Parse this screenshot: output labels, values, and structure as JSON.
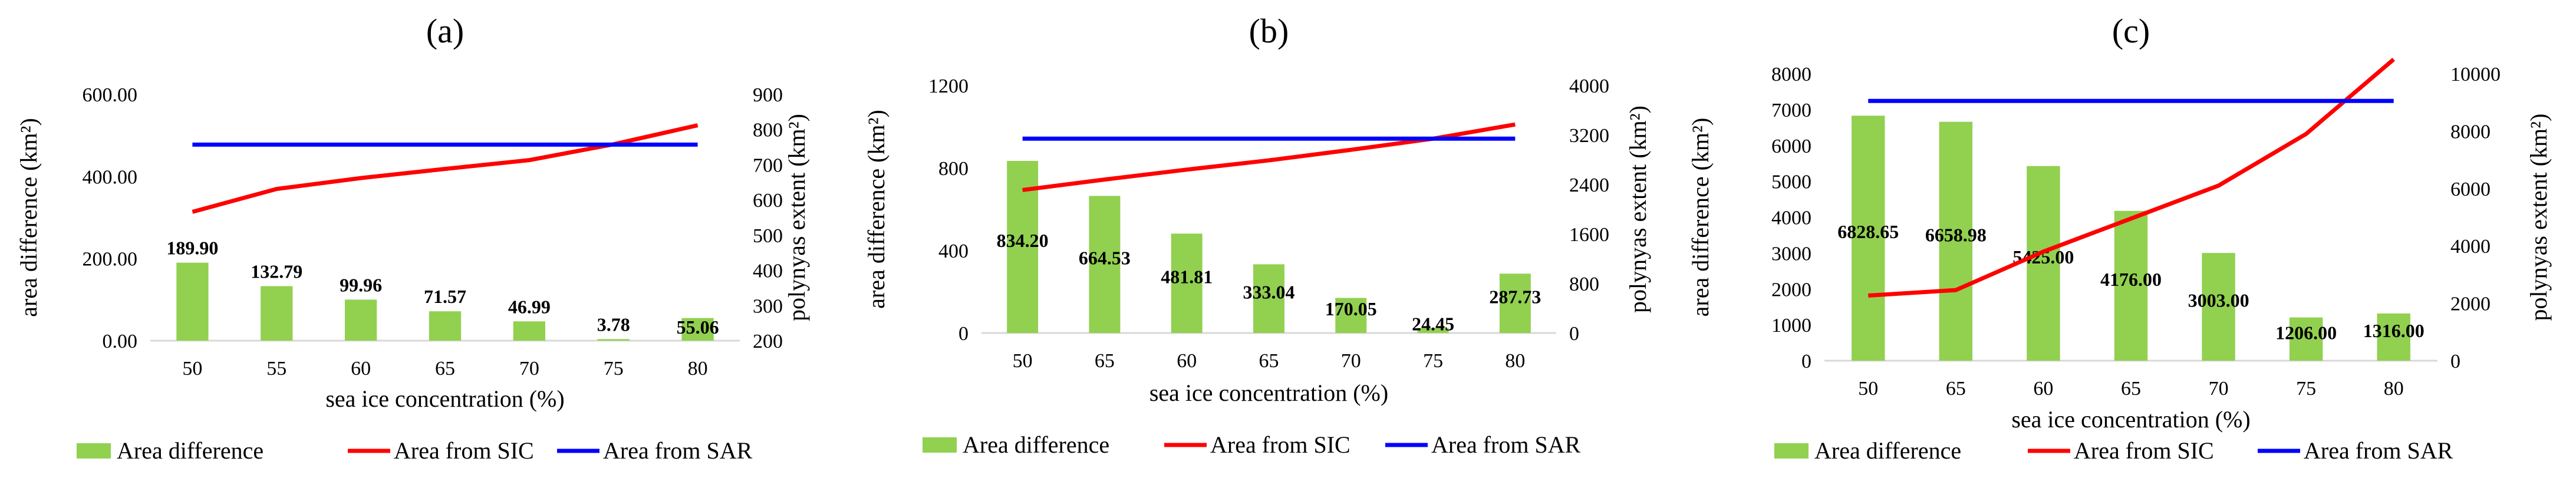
{
  "colors": {
    "area_difference": "#92d050",
    "area_from_sic": "#ff0000",
    "area_from_sar": "#0000ff",
    "axis": "#d9d9d9"
  },
  "legend_labels": {
    "area_difference": "Area difference",
    "area_from_sic": "Area from SIC",
    "area_from_sar": "Area from SAR"
  },
  "chart_data": [
    {
      "panel": "(a)",
      "type": "bar+line",
      "title": "(a)",
      "categories": [
        "50",
        "55",
        "60",
        "65",
        "70",
        "75",
        "80"
      ],
      "xlabel": "sea ice concentration (%)",
      "ylabel_left": "area difference (km²)",
      "ylabel_right": "polynyas extent (km²)",
      "y_left": {
        "min": 0,
        "max": 600,
        "step": 200,
        "ticks": [
          "0.00",
          "200.00",
          "400.00",
          "600.00"
        ]
      },
      "y_right": {
        "min": 200,
        "max": 900,
        "step": 100,
        "ticks": [
          "200",
          "300",
          "400",
          "500",
          "600",
          "700",
          "800",
          "900"
        ]
      },
      "series": [
        {
          "name": "Area difference",
          "kind": "bar",
          "axis": "left",
          "values": [
            189.9,
            132.79,
            99.96,
            71.57,
            46.99,
            3.78,
            55.06
          ],
          "labels": [
            "189.90",
            "132.79",
            "99.96",
            "71.57",
            "46.99",
            "3.78",
            "55.06"
          ]
        },
        {
          "name": "Area from SIC",
          "kind": "line",
          "axis": "right",
          "values": [
            566,
            631,
            662,
            688,
            713,
            758,
            812
          ]
        },
        {
          "name": "Area from SAR",
          "kind": "line",
          "axis": "right",
          "values": [
            757,
            757,
            757,
            757,
            757,
            757,
            757
          ]
        }
      ]
    },
    {
      "panel": "(b)",
      "type": "bar+line",
      "title": "(b)",
      "categories": [
        "50",
        "65",
        "60",
        "65",
        "70",
        "75",
        "80"
      ],
      "xlabel": "sea ice concentration (%)",
      "ylabel_left": "area difference (km²)",
      "ylabel_right": "polynyas extent (km²)",
      "y_left": {
        "min": 0,
        "max": 1200,
        "step": 400,
        "ticks": [
          "0",
          "400",
          "800",
          "1200"
        ]
      },
      "y_right": {
        "min": 0,
        "max": 4000,
        "step": 800,
        "ticks": [
          "0",
          "800",
          "1600",
          "2400",
          "3200",
          "4000"
        ]
      },
      "series": [
        {
          "name": "Area difference",
          "kind": "bar",
          "axis": "left",
          "values": [
            834.2,
            664.53,
            481.81,
            333.04,
            170.05,
            24.45,
            287.73
          ],
          "labels": [
            "834.20",
            "664.53",
            "481.81",
            "333.04",
            "170.05",
            "24.45",
            "287.73"
          ]
        },
        {
          "name": "Area from SIC",
          "kind": "line",
          "axis": "right",
          "values": [
            2310,
            2480,
            2640,
            2790,
            2960,
            3140,
            3370
          ]
        },
        {
          "name": "Area from SAR",
          "kind": "line",
          "axis": "right",
          "values": [
            3140,
            3140,
            3140,
            3140,
            3140,
            3140,
            3140
          ]
        }
      ]
    },
    {
      "panel": "(c)",
      "type": "bar+line",
      "title": "(c)",
      "categories": [
        "50",
        "65",
        "60",
        "65",
        "70",
        "75",
        "80"
      ],
      "xlabel": "sea ice concentration (%)",
      "ylabel_left": "area difference (km²)",
      "ylabel_right": "polynyas extent (km²)",
      "y_left": {
        "min": 0,
        "max": 8000,
        "step": 1000,
        "ticks": [
          "0",
          "1000",
          "2000",
          "3000",
          "4000",
          "5000",
          "6000",
          "7000",
          "8000"
        ]
      },
      "y_right": {
        "min": 0,
        "max": 10000,
        "step": 2000,
        "ticks": [
          "0",
          "2000",
          "4000",
          "6000",
          "8000",
          "10000"
        ]
      },
      "series": [
        {
          "name": "Area difference",
          "kind": "bar",
          "axis": "left",
          "values": [
            6828.65,
            6658.98,
            5425.0,
            4176.0,
            3003.0,
            1206.0,
            1316.0
          ],
          "labels": [
            "6828.65",
            "6658.98",
            "5425.00",
            "4176.00",
            "3003.00",
            "1206.00",
            "1316.00"
          ]
        },
        {
          "name": "Area from SIC",
          "kind": "line",
          "axis": "right",
          "values": [
            2270,
            2460,
            3800,
            4950,
            6100,
            7900,
            10500
          ]
        },
        {
          "name": "Area from SAR",
          "kind": "line",
          "axis": "right",
          "values": [
            9050,
            9050,
            9050,
            9050,
            9050,
            9050,
            9050
          ]
        }
      ]
    }
  ]
}
